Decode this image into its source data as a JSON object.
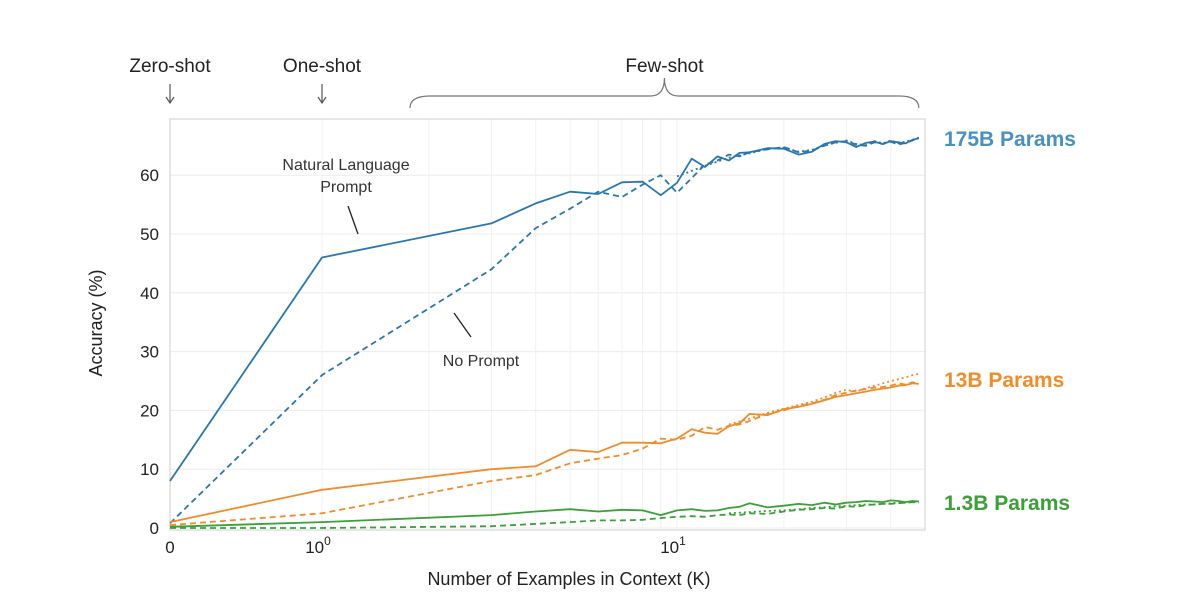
{
  "chart_data": {
    "type": "line",
    "title": "",
    "xlabel": "Number of Examples in Context  (K)",
    "ylabel": "Accuracy (%)",
    "ylim": [
      0,
      68
    ],
    "xscale": "symlog (0, then log10 from 10^0)",
    "x_ticks": [
      {
        "value": 0,
        "label": "0"
      },
      {
        "value": 1,
        "label": "10",
        "exp": "0"
      },
      {
        "value": 10,
        "label": "10",
        "exp": "1"
      }
    ],
    "y_ticks": [
      0,
      10,
      20,
      30,
      40,
      50,
      60
    ],
    "grid": true,
    "header_labels": [
      {
        "text": "Zero-shot",
        "kind": "arrow",
        "x": 0
      },
      {
        "text": "One-shot",
        "kind": "arrow",
        "x": 1
      },
      {
        "text": "Few-shot",
        "kind": "brace",
        "from": 1.8,
        "to": 48
      }
    ],
    "annotations": [
      {
        "lines": [
          "Natural Language",
          "Prompt"
        ]
      },
      {
        "lines": [
          "No Prompt"
        ]
      }
    ],
    "series_labels": [
      {
        "text": "175B Params",
        "color": "#4a90c2"
      },
      {
        "text": "13B Params",
        "color": "#f08c2a"
      },
      {
        "text": "1.3B Params",
        "color": "#3aa038"
      }
    ],
    "series": [
      {
        "color": "#2a77b0",
        "style": "solid",
        "x": [
          0,
          1,
          3,
          4,
          5,
          6,
          7,
          8,
          9,
          10,
          11,
          12,
          13,
          14,
          15,
          16,
          18,
          20,
          22,
          24,
          26,
          28,
          30,
          32,
          34,
          36,
          38,
          40,
          42,
          44,
          46,
          48
        ],
        "y": [
          8.0,
          46.0,
          51.8,
          55.2,
          57.2,
          56.8,
          58.8,
          58.9,
          56.6,
          58.7,
          62.8,
          61.4,
          63.2,
          62.5,
          63.8,
          63.9,
          64.6,
          64.5,
          63.5,
          64.0,
          65.3,
          65.8,
          65.6,
          64.8,
          65.5,
          65.7,
          65.3,
          65.8,
          65.6,
          65.4,
          66.0,
          66.3
        ]
      },
      {
        "color": "#2a77b0",
        "style": "dashed",
        "x": [
          0,
          1,
          3,
          4,
          5,
          6,
          7,
          8,
          9,
          10,
          11,
          12,
          13,
          14,
          15,
          16,
          18,
          20,
          22,
          24,
          26,
          28,
          30,
          32,
          34,
          36,
          38,
          40,
          42,
          44,
          46,
          48
        ],
        "y": [
          0.8,
          26.0,
          44.0,
          51.0,
          54.3,
          57.2,
          56.3,
          58.4,
          60.0,
          57.0,
          59.5,
          61.8,
          62.5,
          63.5,
          63.2,
          63.9,
          64.4,
          64.8,
          63.9,
          64.2,
          65.0,
          65.6,
          65.8,
          65.2,
          65.0,
          65.6,
          65.3,
          65.7,
          65.2,
          65.5,
          65.9,
          66.3
        ]
      },
      {
        "color": "#2a77b0",
        "style": "dotted",
        "x": [
          10,
          12,
          14,
          16,
          18,
          20,
          22,
          24,
          26,
          28,
          30,
          32,
          34,
          36,
          38,
          40,
          42,
          44,
          46,
          48
        ],
        "y": [
          59.8,
          61.6,
          63.0,
          63.7,
          64.5,
          64.7,
          64.0,
          64.3,
          65.1,
          65.5,
          65.9,
          65.3,
          65.1,
          65.8,
          65.4,
          65.9,
          65.4,
          65.7,
          66.0,
          66.4
        ]
      },
      {
        "color": "#f08c2a",
        "style": "solid",
        "x": [
          0,
          1,
          3,
          4,
          5,
          6,
          7,
          8,
          9,
          10,
          11,
          12,
          13,
          14,
          15,
          16,
          18,
          20,
          22,
          24,
          26,
          28,
          30,
          32,
          34,
          36,
          38,
          40,
          42,
          44,
          46,
          48
        ],
        "y": [
          1.0,
          6.5,
          10.0,
          10.5,
          13.3,
          12.9,
          14.5,
          14.5,
          14.4,
          15.2,
          16.8,
          16.2,
          16.0,
          17.3,
          17.8,
          19.4,
          19.2,
          20.2,
          20.6,
          21.1,
          21.7,
          22.3,
          22.6,
          22.9,
          23.2,
          23.5,
          23.7,
          23.9,
          24.2,
          24.3,
          24.6,
          24.5
        ]
      },
      {
        "color": "#f08c2a",
        "style": "dashed",
        "x": [
          0,
          1,
          3,
          4,
          5,
          6,
          7,
          8,
          9,
          10,
          11,
          12,
          13,
          14,
          15,
          16,
          18,
          20,
          22,
          24,
          26,
          28,
          30,
          32,
          34,
          36,
          38,
          40,
          42,
          44,
          46,
          48
        ],
        "y": [
          0.5,
          2.5,
          8.0,
          9.0,
          11.0,
          11.8,
          12.4,
          13.5,
          15.2,
          15.0,
          15.7,
          17.2,
          16.7,
          17.4,
          17.6,
          18.2,
          19.4,
          20.0,
          20.8,
          21.2,
          21.8,
          22.6,
          23.0,
          23.4,
          23.6,
          23.9,
          24.0,
          24.2,
          24.6,
          24.4,
          24.8,
          24.6
        ]
      },
      {
        "color": "#f08c2a",
        "style": "dotted",
        "x": [
          14,
          16,
          18,
          20,
          22,
          24,
          26,
          28,
          30,
          32,
          34,
          36,
          38,
          40,
          42,
          44,
          46,
          48
        ],
        "y": [
          17.6,
          18.6,
          19.6,
          20.3,
          20.9,
          21.5,
          22.2,
          23.0,
          23.5,
          23.2,
          23.8,
          24.2,
          24.6,
          25.0,
          25.3,
          25.6,
          26.0,
          26.2
        ]
      },
      {
        "color": "#3aa038",
        "style": "solid",
        "x": [
          0,
          1,
          3,
          4,
          5,
          6,
          7,
          8,
          9,
          10,
          11,
          12,
          13,
          14,
          15,
          16,
          18,
          20,
          22,
          24,
          26,
          28,
          30,
          32,
          34,
          36,
          38,
          40,
          42,
          44,
          46,
          48
        ],
        "y": [
          0.2,
          1.0,
          2.2,
          2.8,
          3.2,
          2.8,
          3.1,
          3.0,
          2.2,
          3.0,
          3.2,
          2.9,
          3.0,
          3.4,
          3.6,
          4.2,
          3.5,
          3.8,
          4.1,
          3.9,
          4.3,
          4.0,
          4.3,
          4.4,
          4.6,
          4.5,
          4.4,
          4.7,
          4.6,
          4.4,
          4.6,
          4.5
        ]
      },
      {
        "color": "#3aa038",
        "style": "dashed",
        "x": [
          0,
          1,
          3,
          4,
          5,
          6,
          7,
          8,
          9,
          10,
          11,
          12,
          13,
          14,
          15,
          16,
          18,
          20,
          22,
          24,
          26,
          28,
          30,
          32,
          34,
          36,
          38,
          40,
          42,
          44,
          46,
          48
        ],
        "y": [
          0.0,
          0.0,
          0.3,
          0.7,
          1.0,
          1.3,
          1.3,
          1.4,
          1.7,
          1.9,
          2.0,
          1.9,
          2.2,
          2.3,
          2.2,
          2.5,
          2.4,
          2.8,
          3.1,
          3.2,
          3.4,
          3.3,
          3.7,
          3.6,
          3.9,
          4.0,
          4.1,
          4.1,
          4.2,
          4.3,
          4.4,
          4.3
        ]
      },
      {
        "color": "#3aa038",
        "style": "dotted",
        "x": [
          14,
          16,
          18,
          20,
          22,
          24,
          26,
          28,
          30,
          32,
          34,
          36,
          38,
          40,
          42,
          44,
          46,
          48
        ],
        "y": [
          2.5,
          2.7,
          2.9,
          3.0,
          3.2,
          3.4,
          3.5,
          3.7,
          3.8,
          3.9,
          4.0,
          4.0,
          4.1,
          4.2,
          4.3,
          4.3,
          4.4,
          4.4
        ]
      }
    ]
  }
}
